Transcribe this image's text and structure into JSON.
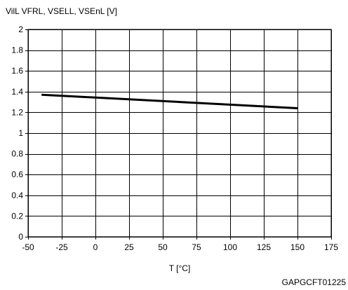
{
  "chart_data": {
    "type": "line",
    "ylabel": "VilL VFRL, VSELL, VSEnL [V]",
    "xlabel": "T [°C]",
    "xlim": [
      -50,
      175
    ],
    "ylim": [
      0,
      2
    ],
    "x_ticks": [
      -50,
      -25,
      0,
      25,
      50,
      75,
      100,
      125,
      150,
      175
    ],
    "y_ticks": [
      0,
      0.2,
      0.4,
      0.6,
      0.8,
      1,
      1.2,
      1.4,
      1.6,
      1.8,
      2
    ],
    "x_tick_labels": [
      "-50",
      "-25",
      "0",
      "25",
      "50",
      "75",
      "100",
      "125",
      "150",
      "175"
    ],
    "y_tick_labels": [
      "0",
      "0.2",
      "0.4",
      "0.6",
      "0.8",
      "1",
      "1.2",
      "1.4",
      "1.6",
      "1.8",
      "2"
    ],
    "grid": true,
    "series": [
      {
        "x": [
          -40,
          150
        ],
        "y": [
          1.37,
          1.24
        ],
        "color": "#000000"
      }
    ],
    "annotation": "GAPGCFT01225"
  }
}
